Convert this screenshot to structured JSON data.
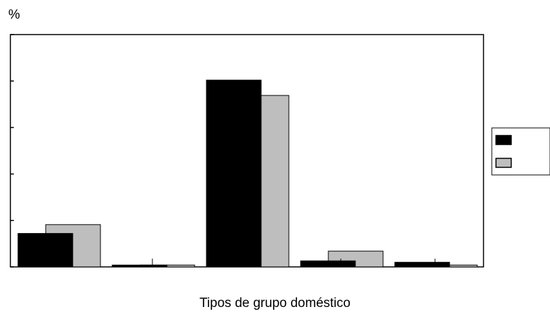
{
  "chart_data": {
    "type": "bar",
    "y_label": "%",
    "x_label": "Tipos de grupo doméstico",
    "categories": [
      null,
      null,
      null,
      null,
      null
    ],
    "series": [
      {
        "color": "#000000",
        "values": [
          7.2,
          0.4,
          40.2,
          1.3,
          1.0
        ]
      },
      {
        "color": "#bebebe",
        "values": [
          9.1,
          0.4,
          36.9,
          3.4,
          0.4
        ]
      }
    ],
    "ylim": [
      0,
      50
    ],
    "yticks": [
      0,
      10,
      20,
      30,
      40,
      50
    ],
    "legend": "right"
  }
}
